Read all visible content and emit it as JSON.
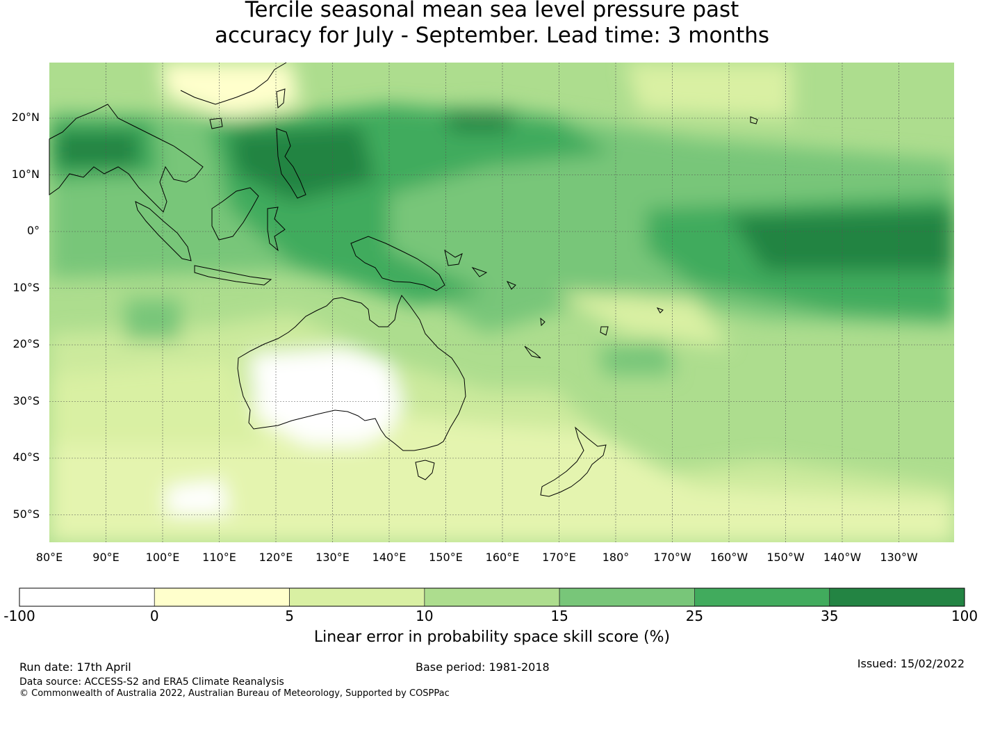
{
  "title_line1": "Tercile seasonal mean sea level pressure past",
  "title_line2": "accuracy for July - September. Lead time: 3 months",
  "lat_labels": [
    "20°N",
    "10°N",
    "0°",
    "10°S",
    "20°S",
    "30°S",
    "40°S",
    "50°S"
  ],
  "lon_labels": [
    "80°E",
    "90°E",
    "100°E",
    "110°E",
    "120°E",
    "130°E",
    "140°E",
    "150°E",
    "160°E",
    "170°E",
    "180°",
    "170°W",
    "160°W",
    "150°W",
    "140°W",
    "130°W"
  ],
  "colorbar": {
    "ticks": [
      "-100",
      "0",
      "5",
      "10",
      "15",
      "25",
      "35",
      "100"
    ],
    "colors": [
      "#ffffff",
      "#ffffcc",
      "#d9f0a3",
      "#addd8e",
      "#78c679",
      "#41ab5d",
      "#238443"
    ],
    "label": "Linear error in probability space skill score (%)"
  },
  "footer": {
    "run_date": "Run date: 17th April",
    "base_period": "Base period: 1981-2018",
    "issued": "Issued: 15/02/2022",
    "data_source": "Data source: ACCESS-S2 and ERA5 Climate Reanalysis",
    "copyright": "© Commonwealth of Australia 2022, Australian Bureau of Meteorology, Supported by COSPPac"
  }
}
